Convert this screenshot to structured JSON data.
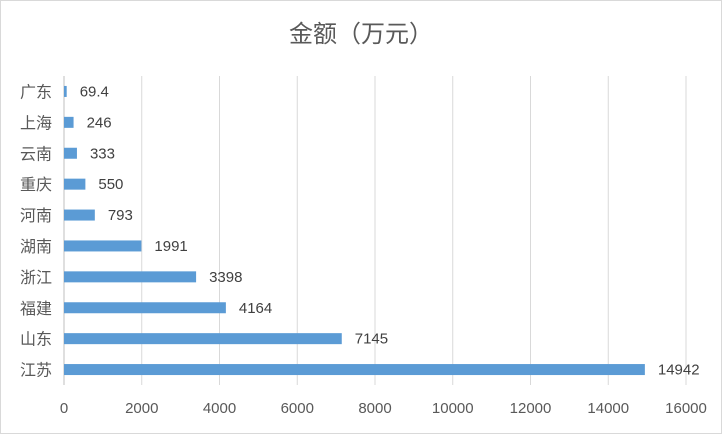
{
  "chart_data": {
    "type": "bar",
    "orientation": "horizontal",
    "title": "金额（万元）",
    "categories": [
      "广东",
      "上海",
      "云南",
      "重庆",
      "河南",
      "湖南",
      "浙江",
      "福建",
      "山东",
      "江苏"
    ],
    "values": [
      69.4,
      246,
      333,
      550,
      793,
      1991,
      3398,
      4164,
      7145,
      14942
    ],
    "value_labels": [
      "69.4",
      "246",
      "333",
      "550",
      "793",
      "1991",
      "3398",
      "4164",
      "7145",
      "14942"
    ],
    "xlim": [
      0,
      16000
    ],
    "xticks": [
      0,
      2000,
      4000,
      6000,
      8000,
      10000,
      12000,
      14000,
      16000
    ],
    "grid": true,
    "legend": "none",
    "bar_color": "#5b9bd5",
    "grid_color": "#d9d9d9"
  }
}
